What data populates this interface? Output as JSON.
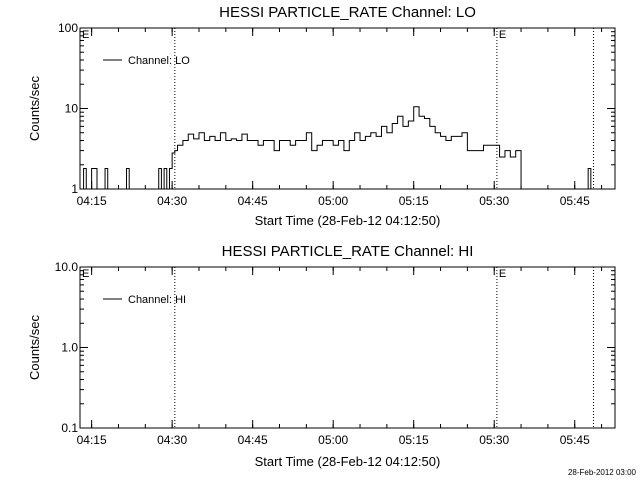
{
  "footer_stamp": "28-Feb-2012 03:00",
  "chart_data": [
    {
      "type": "line",
      "title": "HESSI PARTICLE_RATE Channel: LO",
      "xlabel": "Start Time (28-Feb-12 04:12:50)",
      "ylabel": "Counts/sec",
      "yscale": "log",
      "ylim": [
        1,
        100
      ],
      "xlim": [
        "04:12:50",
        "05:52:30"
      ],
      "x_ticks": [
        "04:15",
        "04:30",
        "04:45",
        "05:00",
        "05:15",
        "05:30",
        "05:45"
      ],
      "y_ticks": [
        "1",
        "10",
        "100"
      ],
      "legend": {
        "entries": [
          "Channel: LO"
        ],
        "placement": "top-left"
      },
      "markers": [
        {
          "time": "04:12:50",
          "label": "E"
        },
        {
          "time": "04:30:30",
          "label": ""
        },
        {
          "time": "05:30:30",
          "label": "E"
        },
        {
          "time": "05:48:30",
          "label": ""
        }
      ],
      "series": [
        {
          "name": "Channel: LO",
          "x": [
            "04:13:00",
            "04:13:30",
            "04:14:00",
            "04:14:30",
            "04:15:00",
            "04:16:00",
            "04:17:00",
            "04:17:30",
            "04:18:00",
            "04:19:00",
            "04:20:00",
            "04:21:00",
            "04:21:30",
            "04:22:00",
            "04:23:00",
            "04:24:00",
            "04:25:00",
            "04:26:00",
            "04:27:00",
            "04:27:30",
            "04:28:00",
            "04:28:30",
            "04:29:00",
            "04:29:30",
            "04:30:00",
            "04:30:30",
            "04:31:00",
            "04:32:00",
            "04:33:00",
            "04:34:00",
            "04:35:00",
            "04:36:00",
            "04:37:00",
            "04:38:00",
            "04:39:00",
            "04:40:00",
            "04:41:00",
            "04:42:00",
            "04:43:00",
            "04:44:00",
            "04:45:00",
            "04:46:00",
            "04:47:00",
            "04:48:00",
            "04:49:00",
            "04:50:00",
            "04:51:00",
            "04:52:00",
            "04:53:00",
            "04:54:00",
            "04:55:00",
            "04:56:00",
            "04:57:00",
            "04:58:00",
            "04:59:00",
            "05:00:00",
            "05:01:00",
            "05:02:00",
            "05:03:00",
            "05:04:00",
            "05:05:00",
            "05:06:00",
            "05:07:00",
            "05:08:00",
            "05:09:00",
            "05:10:00",
            "05:11:00",
            "05:12:00",
            "05:13:00",
            "05:14:00",
            "05:15:00",
            "05:16:00",
            "05:17:00",
            "05:18:00",
            "05:19:00",
            "05:20:00",
            "05:21:00",
            "05:22:00",
            "05:23:00",
            "05:24:00",
            "05:25:00",
            "05:26:00",
            "05:27:00",
            "05:28:00",
            "05:29:00",
            "05:30:00",
            "05:31:00",
            "05:32:00",
            "05:33:00",
            "05:34:00",
            "05:35:00",
            "05:47:00",
            "05:47:30",
            "05:48:00"
          ],
          "values": [
            1.0,
            1.8,
            1.0,
            1.0,
            1.8,
            1.0,
            1.0,
            1.8,
            1.0,
            1.0,
            1.0,
            1.0,
            1.8,
            1.0,
            1.0,
            1.0,
            1.0,
            1.0,
            1.0,
            1.8,
            1.0,
            1.8,
            1.0,
            1.8,
            2.8,
            3.0,
            3.5,
            4.0,
            4.8,
            4.2,
            5.0,
            4.0,
            4.5,
            4.0,
            5.0,
            4.0,
            4.2,
            4.0,
            4.8,
            4.0,
            4.0,
            3.5,
            4.0,
            4.0,
            3.0,
            4.0,
            4.0,
            3.5,
            4.0,
            4.0,
            5.0,
            3.0,
            3.5,
            4.0,
            4.0,
            3.5,
            4.0,
            3.0,
            4.0,
            5.0,
            4.0,
            4.5,
            5.0,
            4.5,
            6.0,
            5.0,
            6.5,
            8.0,
            6.0,
            7.0,
            10.5,
            8.0,
            7.5,
            6.0,
            5.0,
            4.5,
            4.0,
            4.5,
            4.5,
            5.0,
            3.0,
            3.0,
            3.0,
            3.5,
            3.5,
            3.5,
            2.5,
            3.0,
            2.5,
            3.0,
            1.0,
            1.0,
            1.8,
            1.0
          ]
        }
      ]
    },
    {
      "type": "line",
      "title": "HESSI PARTICLE_RATE Channel: HI",
      "xlabel": "Start Time (28-Feb-12 04:12:50)",
      "ylabel": "Counts/sec",
      "yscale": "log",
      "ylim": [
        0.1,
        10.0
      ],
      "xlim": [
        "04:12:50",
        "05:52:30"
      ],
      "x_ticks": [
        "04:15",
        "04:30",
        "04:45",
        "05:00",
        "05:15",
        "05:30",
        "05:45"
      ],
      "y_ticks": [
        "0.1",
        "1.0",
        "10.0"
      ],
      "legend": {
        "entries": [
          "Channel: HI"
        ],
        "placement": "top-left"
      },
      "markers": [
        {
          "time": "04:12:50",
          "label": "E"
        },
        {
          "time": "04:30:30",
          "label": ""
        },
        {
          "time": "05:30:30",
          "label": "E"
        },
        {
          "time": "05:48:30",
          "label": ""
        }
      ],
      "series": [
        {
          "name": "Channel: HI",
          "x": [],
          "values": []
        }
      ]
    }
  ]
}
